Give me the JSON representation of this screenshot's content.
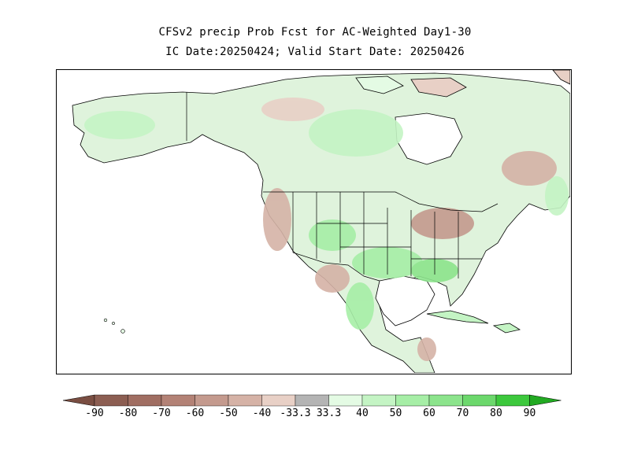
{
  "title": {
    "line1": "CFSv2 precip Prob Fcst for AC-Weighted Day1-30",
    "line2": "IC Date:20250424; Valid Start Date: 20250426"
  },
  "colorbar": {
    "bins": [
      {
        "label": "-90",
        "color": "#8c5e52"
      },
      {
        "label": "-80",
        "color": "#a06e62"
      },
      {
        "label": "-70",
        "color": "#b38276"
      },
      {
        "label": "-60",
        "color": "#c49a8e"
      },
      {
        "label": "-50",
        "color": "#d5b2a6"
      },
      {
        "label": "-40",
        "color": "#e8d0c6"
      },
      {
        "label": "-33.3",
        "color": "#b4b4b4"
      },
      {
        "label": "33.3",
        "color": "#e4fbe4"
      },
      {
        "label": "40",
        "color": "#c4f4c4"
      },
      {
        "label": "50",
        "color": "#a6eea6"
      },
      {
        "label": "60",
        "color": "#8ce48c"
      },
      {
        "label": "70",
        "color": "#6cd86c"
      },
      {
        "label": "80",
        "color": "#3cc83c"
      },
      {
        "label": "90",
        "color": "#1ea81e"
      }
    ],
    "below_color": "#7a4e42",
    "above_color": "#22aa22"
  },
  "map": {
    "region": "North America",
    "water_color": "#ffffff",
    "border_color": "#000000"
  }
}
